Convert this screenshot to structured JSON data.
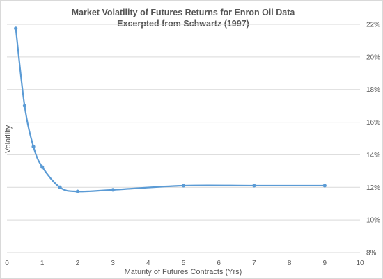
{
  "chart_data": {
    "type": "scatter",
    "title_lines": [
      "Market Volatility of Futures Returns for Enron Oil Data",
      "Excerpted from Schwartz (1997)"
    ],
    "xlabel": "Maturity of Futures Contracts (Yrs)",
    "ylabel": "Volatility",
    "xlim": [
      0,
      10
    ],
    "ylim": [
      0.08,
      0.22
    ],
    "x_ticks": [
      0,
      1,
      2,
      3,
      4,
      5,
      6,
      7,
      8,
      9,
      10
    ],
    "y_ticks": [
      0.08,
      0.1,
      0.12,
      0.14,
      0.16,
      0.18,
      0.2,
      0.22
    ],
    "y_tick_labels": [
      "8%",
      "10%",
      "12%",
      "14%",
      "16%",
      "18%",
      "20%",
      "22%"
    ],
    "y_axis_side": "right",
    "grid": "horizontal",
    "line_style": "smooth",
    "color": "#5b9bd5",
    "series": [
      {
        "x": [
          0.25,
          0.5,
          0.75,
          1,
          1.5,
          2,
          3,
          5,
          7,
          9
        ],
        "y": [
          0.2175,
          0.17,
          0.145,
          0.1325,
          0.12,
          0.1175,
          0.1185,
          0.121,
          0.121,
          0.121
        ]
      }
    ]
  }
}
